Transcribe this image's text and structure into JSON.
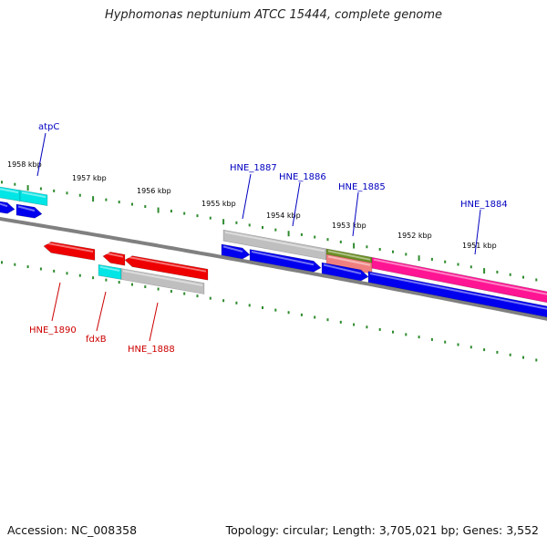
{
  "title": "Hyphomonas neptunium ATCC 15444, complete genome",
  "footer": {
    "accession": "Accession: NC_008358",
    "summary": "Topology: circular; Length: 3,705,021 bp; Genes: 3,552"
  },
  "colors": {
    "background": "#ffffff",
    "backbone": "#808080",
    "tick": "#2e8b2e",
    "tick_label": "#000000",
    "label_top": "#0000c0",
    "label_bottom": "#cc0000",
    "gene_blue": "#0000ee",
    "gene_red": "#ee0000",
    "gene_cyan": "#00e5e5",
    "gene_gray": "#bfbfbf",
    "gene_pink": "#ff1493",
    "gene_olive": "#6b8e23",
    "gene_salmon": "#f08080"
  },
  "scale_labels": [
    "1958 kbp",
    "1957 kbp",
    "1956 kbp",
    "1955 kbp",
    "1954 kbp",
    "1953 kbp",
    "1952 kbp",
    "1951 kbp"
  ],
  "gene_labels": {
    "top": [
      "atpC",
      "HNE_1887",
      "HNE_1886",
      "HNE_1885",
      "HNE_1884"
    ],
    "bottom": [
      "HNE_1890",
      "fdxB",
      "HNE_1888"
    ]
  }
}
